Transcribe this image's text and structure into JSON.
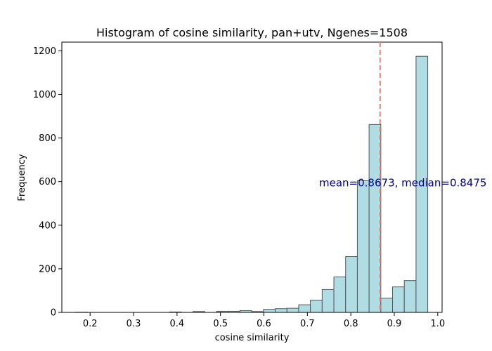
{
  "chart_data": {
    "type": "bar",
    "title": "Histogram of cosine similarity, pan+utv, Ngenes=1508",
    "xlabel": "cosine similarity",
    "ylabel": "Frequency",
    "xlim": [
      0.135,
      1.01
    ],
    "ylim": [
      0,
      1240
    ],
    "xticks": [
      0.2,
      0.3,
      0.4,
      0.5,
      0.6,
      0.7,
      0.8,
      0.9,
      1.0
    ],
    "xtick_labels": [
      "0.2",
      "0.3",
      "0.4",
      "0.5",
      "0.6",
      "0.7",
      "0.8",
      "0.9",
      "1.0"
    ],
    "yticks": [
      0,
      200,
      400,
      600,
      800,
      1000,
      1200
    ],
    "ytick_labels": [
      "0",
      "200",
      "400",
      "600",
      "800",
      "1000",
      "1200"
    ],
    "bins": [
      {
        "x0": 0.167,
        "x1": 0.194,
        "count": 1
      },
      {
        "x0": 0.194,
        "x1": 0.221,
        "count": 0
      },
      {
        "x0": 0.221,
        "x1": 0.248,
        "count": 0
      },
      {
        "x0": 0.248,
        "x1": 0.275,
        "count": 0
      },
      {
        "x0": 0.275,
        "x1": 0.302,
        "count": 0
      },
      {
        "x0": 0.302,
        "x1": 0.329,
        "count": 0
      },
      {
        "x0": 0.329,
        "x1": 0.356,
        "count": 0
      },
      {
        "x0": 0.356,
        "x1": 0.383,
        "count": 0
      },
      {
        "x0": 0.383,
        "x1": 0.41,
        "count": 2
      },
      {
        "x0": 0.41,
        "x1": 0.437,
        "count": 0
      },
      {
        "x0": 0.437,
        "x1": 0.464,
        "count": 4
      },
      {
        "x0": 0.464,
        "x1": 0.491,
        "count": 0
      },
      {
        "x0": 0.491,
        "x1": 0.518,
        "count": 5
      },
      {
        "x0": 0.518,
        "x1": 0.545,
        "count": 5
      },
      {
        "x0": 0.545,
        "x1": 0.572,
        "count": 8
      },
      {
        "x0": 0.572,
        "x1": 0.599,
        "count": 4
      },
      {
        "x0": 0.599,
        "x1": 0.626,
        "count": 14
      },
      {
        "x0": 0.626,
        "x1": 0.653,
        "count": 17
      },
      {
        "x0": 0.653,
        "x1": 0.68,
        "count": 19
      },
      {
        "x0": 0.68,
        "x1": 0.707,
        "count": 35
      },
      {
        "x0": 0.707,
        "x1": 0.734,
        "count": 56
      },
      {
        "x0": 0.734,
        "x1": 0.761,
        "count": 105
      },
      {
        "x0": 0.761,
        "x1": 0.788,
        "count": 163
      },
      {
        "x0": 0.788,
        "x1": 0.815,
        "count": 256
      },
      {
        "x0": 0.815,
        "x1": 0.842,
        "count": 604
      },
      {
        "x0": 0.842,
        "x1": 0.869,
        "count": 862
      },
      {
        "x0": 0.869,
        "x1": 0.896,
        "count": 65
      },
      {
        "x0": 0.896,
        "x1": 0.923,
        "count": 117
      },
      {
        "x0": 0.923,
        "x1": 0.95,
        "count": 146
      },
      {
        "x0": 0.95,
        "x1": 0.977,
        "count": 1175
      }
    ],
    "mean_line": {
      "x": 0.8673
    },
    "annotation": {
      "text": "mean=0.8673, median=0.8475",
      "x": 0.727,
      "y": 595
    },
    "colors": {
      "bar_fill": "#b0dde4",
      "bar_edge": "#555555",
      "mean_line": "#f08070",
      "annotation": "#00008b"
    },
    "grid": false,
    "legend": "none"
  }
}
